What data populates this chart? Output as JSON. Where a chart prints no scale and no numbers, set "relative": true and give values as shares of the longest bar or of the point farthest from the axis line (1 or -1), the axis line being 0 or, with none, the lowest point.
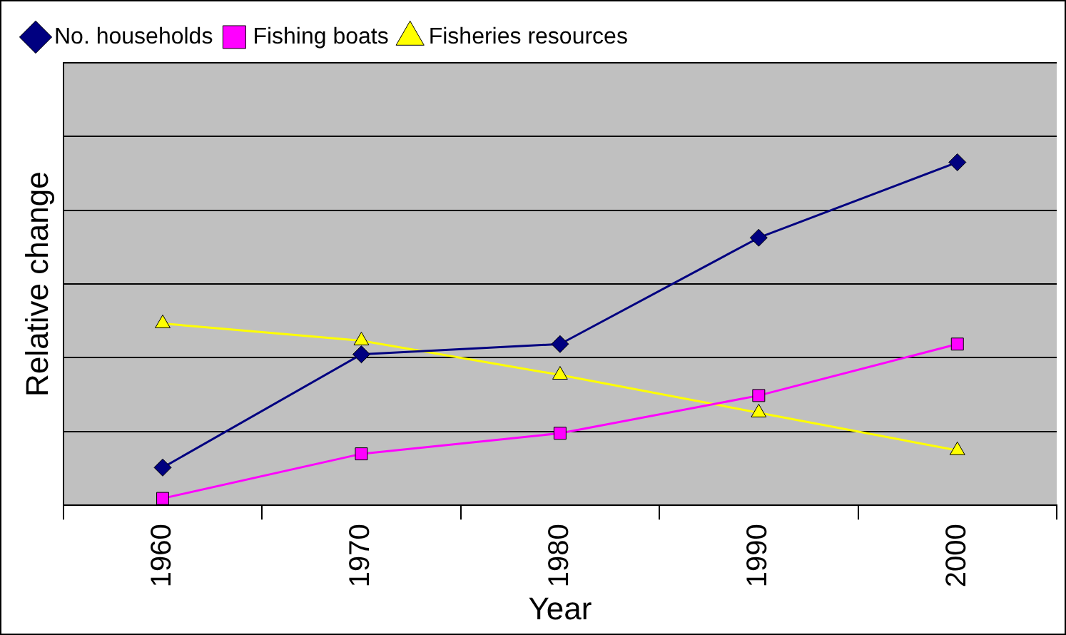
{
  "chart_data": {
    "type": "line",
    "relative": true,
    "xlabel": "Year",
    "ylabel": "Relative change",
    "categories": [
      "1960",
      "1970",
      "1980",
      "1990",
      "2000"
    ],
    "series": [
      {
        "name": "No. households",
        "color": "#000080",
        "marker": "diamond",
        "values": [
          0.11,
          0.44,
          0.47,
          0.78,
          1
        ]
      },
      {
        "name": "Fishing boats",
        "color": "#ff00ff",
        "marker": "square",
        "values": [
          0.02,
          0.15,
          0.21,
          0.32,
          0.47
        ]
      },
      {
        "name": "Fisheries resources",
        "color": "#ffff00",
        "marker": "triangle",
        "values": [
          0.53,
          0.48,
          0.38,
          0.27,
          0.16
        ]
      }
    ],
    "grid": "y",
    "legend": "top"
  }
}
